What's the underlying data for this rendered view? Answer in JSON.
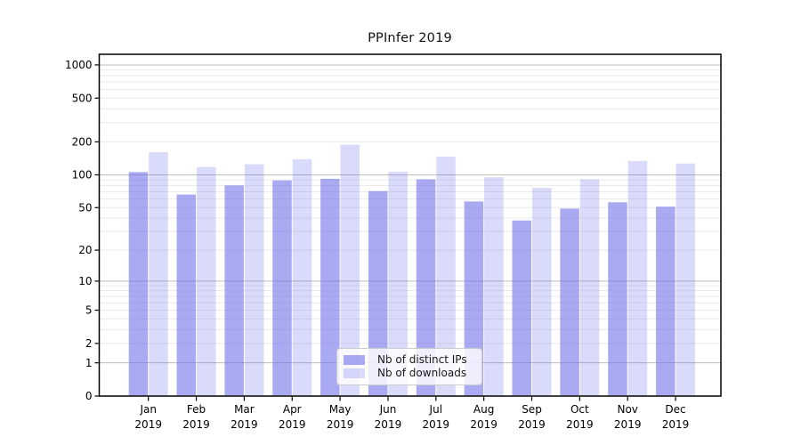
{
  "chart_data": {
    "type": "bar",
    "title": "PPInfer 2019",
    "categories": [
      "Jan",
      "Feb",
      "Mar",
      "Apr",
      "May",
      "Jun",
      "Jul",
      "Aug",
      "Sep",
      "Oct",
      "Nov",
      "Dec"
    ],
    "x_tick_second_line": "2019",
    "series": [
      {
        "name": "Nb of distinct IPs",
        "fill": "rgba(108,108,235,0.58)",
        "values": [
          106,
          66,
          80,
          89,
          92,
          71,
          91,
          57,
          38,
          49,
          56,
          51
        ]
      },
      {
        "name": "Nb of downloads",
        "fill": "rgba(108,108,235,0.25)",
        "values": [
          161,
          118,
          125,
          139,
          188,
          107,
          147,
          95,
          76,
          91,
          134,
          127
        ]
      }
    ],
    "y_axis": {
      "ticks": [
        0,
        1,
        2,
        5,
        10,
        20,
        50,
        100,
        200,
        500,
        1000
      ],
      "scale": "log10(v+1)",
      "ylim": [
        0,
        1250
      ]
    },
    "grid": {
      "major_lines": [
        1,
        10,
        100,
        1000
      ],
      "minor_lines": [
        2,
        3,
        4,
        5,
        6,
        7,
        8,
        9,
        20,
        30,
        40,
        50,
        60,
        70,
        80,
        90,
        200,
        300,
        400,
        500,
        600,
        700,
        800,
        900
      ]
    },
    "legend_position": "bottom-center",
    "colors": {
      "major_grid": "#bdbdbd",
      "minor_grid": "#eaeaea",
      "axis": "#000000",
      "tick_text": "#000000"
    }
  }
}
